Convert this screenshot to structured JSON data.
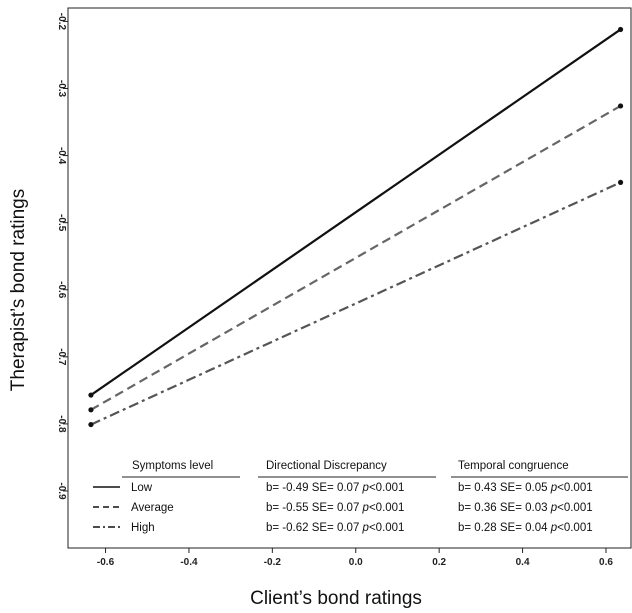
{
  "chart_data": {
    "type": "line",
    "xlabel": "Client’s bond ratings",
    "ylabel": "Therapist’s bond ratings",
    "xlim": [
      -0.69,
      0.66
    ],
    "ylim": [
      -0.985,
      -0.18
    ],
    "x_ticks": [
      "-0.6",
      "-0.4",
      "-0.2",
      "0.0",
      "0.2",
      "0.4",
      "0.6"
    ],
    "x_tick_values": [
      -0.6,
      -0.4,
      -0.2,
      0.0,
      0.2,
      0.4,
      0.6
    ],
    "y_ticks": [
      "-0.2",
      "-0.3",
      "-0.4",
      "-0.5",
      "-0.6",
      "-0.7",
      "-0.8",
      "-0.9"
    ],
    "y_tick_values": [
      -0.2,
      -0.3,
      -0.4,
      -0.5,
      -0.6,
      -0.7,
      -0.8,
      -0.9
    ],
    "series": [
      {
        "name": "Low",
        "style": "solid",
        "color": "#111111",
        "x": [
          -0.635,
          0.635
        ],
        "y": [
          -0.757,
          -0.212
        ]
      },
      {
        "name": "Average",
        "style": "dashed",
        "color": "#666666",
        "x": [
          -0.635,
          0.635
        ],
        "y": [
          -0.779,
          -0.326
        ]
      },
      {
        "name": "High",
        "style": "dashdot",
        "color": "#555555",
        "x": [
          -0.635,
          0.635
        ],
        "y": [
          -0.801,
          -0.44
        ]
      }
    ],
    "legend": {
      "placement": "bottom-center",
      "headers": {
        "symptoms": "Symptoms level",
        "directional": "Directional Discrepancy",
        "temporal": "Temporal congruence"
      },
      "rows": [
        {
          "label": "Low",
          "dd_pre": "b= -0.49 SE= 0.07 ",
          "dd_p": "p",
          "dd_post": "<0.001",
          "tc_pre": "b= 0.43 SE= 0.05 ",
          "tc_p": "p",
          "tc_post": "<0.001"
        },
        {
          "label": "Average",
          "dd_pre": "b= -0.55 SE= 0.07 ",
          "dd_p": "p",
          "dd_post": "<0.001",
          "tc_pre": "b= 0.36 SE= 0.03 ",
          "tc_p": "p",
          "tc_post": "<0.001"
        },
        {
          "label": "High",
          "dd_pre": "b= -0.62 SE= 0.07 ",
          "dd_p": "p",
          "dd_post": "<0.001",
          "tc_pre": "b= 0.28 SE= 0.04 ",
          "tc_p": "p",
          "tc_post": "<0.001"
        }
      ]
    }
  }
}
